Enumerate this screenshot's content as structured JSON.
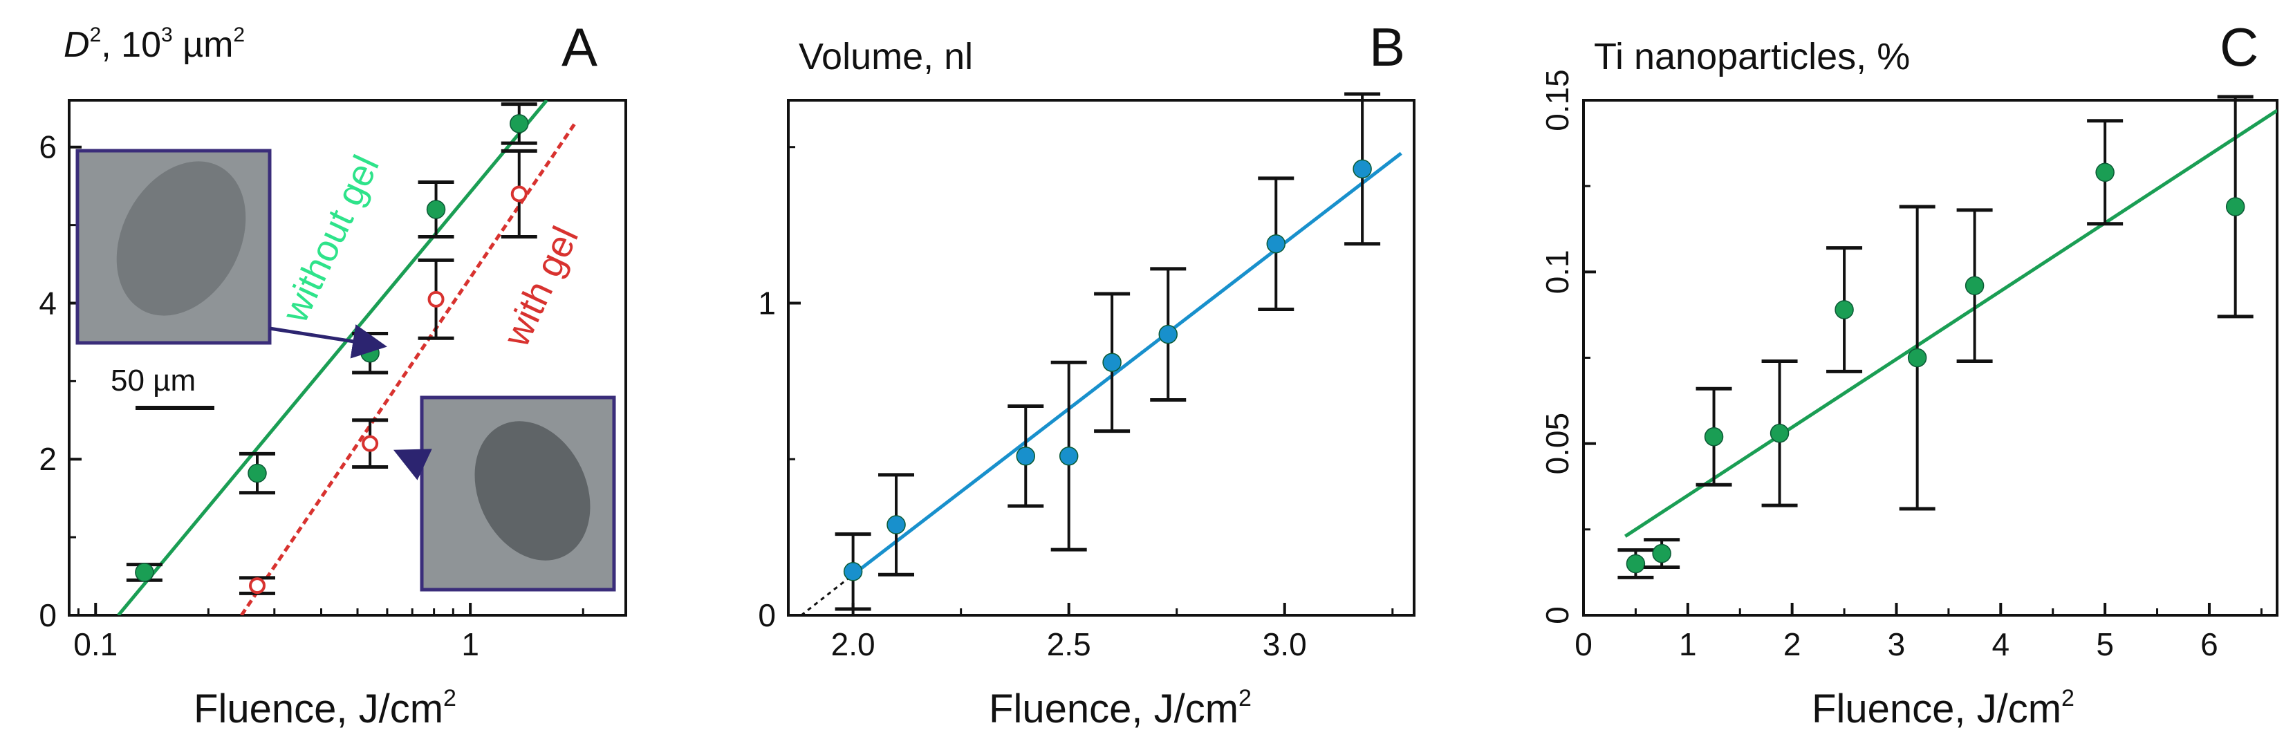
{
  "colors": {
    "green": "#1a9e54",
    "green_text": "#2ee38a",
    "red": "#d8322f",
    "blue": "#1890cc",
    "axis": "#111111",
    "inset_border": "#3a2d7a",
    "inset_bg": "#8f9497",
    "arrow": "#2c2470"
  },
  "chart_data": [
    {
      "panel": "A",
      "type": "scatter",
      "xscale": "log",
      "title_italic": "D",
      "title_sup": "2",
      "title_rest": ", 10",
      "title_sup2": "3",
      "title_unit": " µm",
      "title_sup3": "2",
      "xlabel": "Fluence, J/cm",
      "xlabel_sup": "2",
      "xlim": [
        0.085,
        2.6
      ],
      "ylim": [
        0,
        6.6
      ],
      "xticks": [
        0.1,
        1
      ],
      "xtick_labels": [
        "0.1",
        "1"
      ],
      "yticks": [
        0,
        2,
        4,
        6
      ],
      "ytick_labels": [
        "0",
        "2",
        "4",
        "6"
      ],
      "series": [
        {
          "name": "without gel",
          "marker": "filled circle",
          "points": [
            {
              "x": 0.135,
              "y": 0.55,
              "err": 0.1
            },
            {
              "x": 0.27,
              "y": 1.82,
              "err": 0.25
            },
            {
              "x": 0.54,
              "y": 3.36,
              "err": 0.25
            },
            {
              "x": 0.81,
              "y": 5.2,
              "err": 0.35
            },
            {
              "x": 1.35,
              "y": 6.3,
              "err": 0.25
            }
          ],
          "fit": [
            [
              0.115,
              0.0
            ],
            [
              1.6,
              6.6
            ]
          ]
        },
        {
          "name": "with gel",
          "marker": "open circle",
          "points": [
            {
              "x": 0.27,
              "y": 0.38,
              "err": 0.1
            },
            {
              "x": 0.54,
              "y": 2.2,
              "err": 0.3
            },
            {
              "x": 0.81,
              "y": 4.05,
              "err": 0.5
            },
            {
              "x": 1.35,
              "y": 5.4,
              "err": 0.55
            }
          ],
          "fit": [
            [
              0.245,
              0.0
            ],
            [
              1.9,
              6.3
            ]
          ]
        }
      ],
      "annotations": {
        "without_gel": "without gel",
        "with_gel": "with gel",
        "scale_bar": "50 µm"
      }
    },
    {
      "panel": "B",
      "type": "scatter",
      "title": "Volume, nl",
      "xlabel": "Fluence, J/cm",
      "xlabel_sup": "2",
      "xlim": [
        1.85,
        3.3
      ],
      "ylim": [
        0,
        1.65
      ],
      "xticks": [
        2.0,
        2.5,
        3.0
      ],
      "xtick_labels": [
        "2.0",
        "2.5",
        "3.0"
      ],
      "yticks": [
        0,
        1
      ],
      "ytick_labels": [
        "0",
        "1"
      ],
      "series": [
        {
          "name": "volume",
          "marker": "filled circle",
          "points": [
            {
              "x": 2.0,
              "y": 0.14,
              "err": 0.12
            },
            {
              "x": 2.1,
              "y": 0.29,
              "err": 0.16
            },
            {
              "x": 2.4,
              "y": 0.51,
              "err": 0.16
            },
            {
              "x": 2.5,
              "y": 0.51,
              "err": 0.3
            },
            {
              "x": 2.6,
              "y": 0.81,
              "err": 0.22
            },
            {
              "x": 2.73,
              "y": 0.9,
              "err": 0.21
            },
            {
              "x": 2.98,
              "y": 1.19,
              "err": 0.21
            },
            {
              "x": 3.18,
              "y": 1.43,
              "err": 0.24
            }
          ],
          "fit": [
            [
              2.0,
              0.13
            ],
            [
              3.27,
              1.48
            ]
          ],
          "fit_extrapolation": [
            [
              1.88,
              0.0
            ],
            [
              2.0,
              0.13
            ]
          ]
        }
      ]
    },
    {
      "panel": "C",
      "type": "scatter",
      "title": "Ti nanoparticles, %",
      "xlabel": "Fluence, J/cm",
      "xlabel_sup": "2",
      "xlim": [
        0,
        6.65
      ],
      "ylim": [
        0,
        0.15
      ],
      "xticks": [
        0,
        1,
        2,
        3,
        4,
        5,
        6
      ],
      "xtick_labels": [
        "0",
        "1",
        "2",
        "3",
        "4",
        "5",
        "6"
      ],
      "yticks": [
        0,
        0.05,
        0.1,
        0.15
      ],
      "ytick_labels": [
        "0",
        "0.05",
        "0.1",
        "0.15"
      ],
      "series": [
        {
          "name": "Ti nanoparticles",
          "marker": "filled circle",
          "points": [
            {
              "x": 0.5,
              "y": 0.015,
              "err": 0.004
            },
            {
              "x": 0.75,
              "y": 0.018,
              "err": 0.004
            },
            {
              "x": 1.25,
              "y": 0.052,
              "err": 0.014
            },
            {
              "x": 1.88,
              "y": 0.053,
              "err": 0.021
            },
            {
              "x": 2.5,
              "y": 0.089,
              "err": 0.018
            },
            {
              "x": 3.2,
              "y": 0.075,
              "err": 0.044
            },
            {
              "x": 3.75,
              "y": 0.096,
              "err": 0.022
            },
            {
              "x": 5.0,
              "y": 0.129,
              "err": 0.015
            },
            {
              "x": 6.25,
              "y": 0.119,
              "err": 0.032
            }
          ],
          "fit": [
            [
              0.4,
              0.023
            ],
            [
              6.65,
              0.147
            ]
          ]
        }
      ]
    }
  ],
  "panel_letters": [
    "A",
    "B",
    "C"
  ]
}
